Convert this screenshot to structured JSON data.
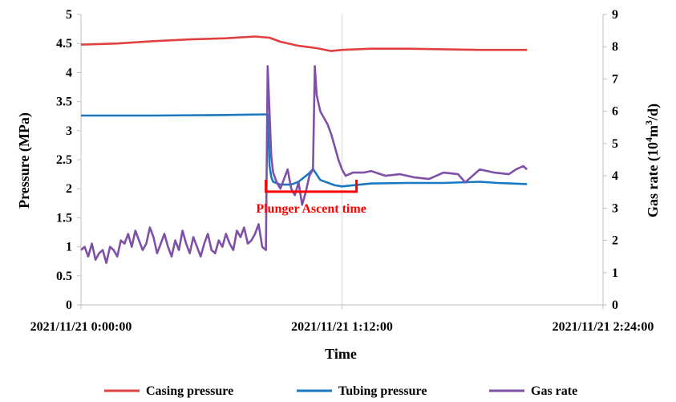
{
  "chart_data": {
    "type": "line",
    "title": "",
    "xlabel": "Time",
    "ylabel": "Pressure (MPa)",
    "ylabel_right_parts": [
      "Gas rate (10",
      "4",
      "m",
      "3",
      "/d)"
    ],
    "xlim": [
      0,
      144
    ],
    "ylim": [
      0,
      5
    ],
    "ylim_right": [
      0,
      9
    ],
    "x_unit": "minutes",
    "grid": "vertical",
    "legend": "bottom",
    "x_ticks": [
      {
        "value": 0,
        "label": "2021/11/21 0:00:00"
      },
      {
        "value": 72,
        "label": "2021/11/21 1:12:00"
      },
      {
        "value": 144,
        "label": "2021/11/21 2:24:00"
      }
    ],
    "y_ticks": [
      "0",
      "0.5",
      "1",
      "1.5",
      "2",
      "2.5",
      "3",
      "3.5",
      "4",
      "4.5",
      "5"
    ],
    "y_ticks_right": [
      "0",
      "1",
      "2",
      "3",
      "4",
      "5",
      "6",
      "7",
      "8",
      "9"
    ],
    "annotation": {
      "text": "Plunger Ascent time",
      "x_start": 51,
      "x_end": 76,
      "y": 1.95,
      "color": "#ff0000"
    },
    "series": [
      {
        "name": "Casing pressure",
        "color": "#e04040",
        "axis": "left",
        "x": [
          0,
          10,
          20,
          30,
          40,
          48,
          52,
          55,
          60,
          65,
          69,
          72,
          80,
          90,
          100,
          110,
          123
        ],
        "y": [
          4.48,
          4.5,
          4.54,
          4.57,
          4.59,
          4.62,
          4.6,
          4.53,
          4.46,
          4.42,
          4.37,
          4.39,
          4.41,
          4.41,
          4.4,
          4.39,
          4.39
        ]
      },
      {
        "name": "Tubing pressure",
        "color": "#1a78c2",
        "axis": "left",
        "x": [
          0,
          20,
          40,
          51.5,
          52,
          52.5,
          53,
          55,
          58,
          60,
          63,
          64,
          66,
          70,
          72,
          80,
          90,
          100,
          110,
          115,
          123
        ],
        "y": [
          3.26,
          3.26,
          3.27,
          3.28,
          2.4,
          2.2,
          2.12,
          2.07,
          2.07,
          2.12,
          2.27,
          2.34,
          2.15,
          2.06,
          2.04,
          2.09,
          2.1,
          2.1,
          2.12,
          2.1,
          2.08
        ]
      },
      {
        "name": "Gas rate",
        "color": "#7f50a8",
        "axis": "right",
        "x": [
          0,
          1,
          2,
          3,
          4,
          5,
          6,
          7,
          8,
          9,
          10,
          11,
          12,
          13,
          14,
          15,
          16,
          17,
          18,
          19,
          20,
          21,
          22,
          23,
          24,
          25,
          26,
          27,
          28,
          29,
          30,
          31,
          32,
          33,
          34,
          35,
          36,
          37,
          38,
          39,
          40,
          41,
          42,
          43,
          44,
          45,
          46,
          47,
          48,
          49,
          50,
          51,
          51.5,
          52,
          52.5,
          53,
          54,
          55,
          56,
          57,
          58,
          59,
          60,
          61,
          62,
          63,
          64,
          64.5,
          65,
          66,
          67,
          68,
          69,
          70,
          71,
          72,
          73,
          75,
          78,
          80,
          84,
          88,
          92,
          96,
          100,
          104,
          106,
          110,
          114,
          118,
          120,
          122,
          123
        ],
        "y": [
          1.7,
          1.8,
          1.5,
          1.9,
          1.4,
          1.6,
          1.7,
          1.3,
          1.8,
          1.7,
          1.5,
          2.0,
          1.9,
          2.2,
          1.8,
          2.3,
          2.0,
          1.7,
          1.9,
          2.4,
          2.1,
          1.6,
          1.9,
          2.2,
          1.8,
          1.5,
          2.0,
          1.7,
          2.3,
          1.9,
          1.6,
          2.1,
          1.8,
          1.5,
          1.9,
          2.2,
          1.7,
          1.6,
          2.0,
          1.8,
          2.2,
          1.9,
          1.7,
          2.3,
          2.1,
          2.4,
          1.9,
          2.0,
          2.2,
          2.5,
          1.8,
          1.7,
          7.4,
          6.0,
          4.6,
          4.1,
          3.8,
          3.6,
          3.9,
          4.2,
          3.6,
          3.4,
          3.8,
          3.1,
          3.5,
          4.0,
          4.2,
          7.4,
          6.5,
          6.0,
          5.8,
          5.6,
          5.3,
          4.9,
          4.5,
          4.2,
          4.0,
          4.1,
          4.1,
          4.15,
          4.0,
          4.05,
          3.95,
          3.9,
          4.1,
          4.05,
          3.8,
          4.2,
          4.1,
          4.05,
          4.2,
          4.3,
          4.2
        ]
      }
    ]
  }
}
